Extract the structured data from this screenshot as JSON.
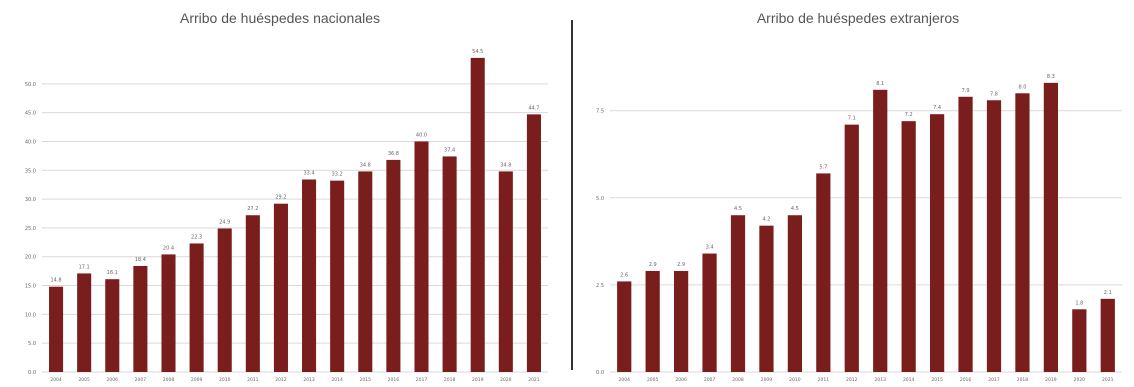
{
  "colors": {
    "bar": "#7a1d1d",
    "grid": "#d9d9d9",
    "text": "#666666"
  },
  "chart_data": [
    {
      "type": "bar",
      "title": "Arribo de huéspedes nacionales",
      "categories": [
        "2004",
        "2005",
        "2006",
        "2007",
        "2008",
        "2009",
        "2010",
        "2011",
        "2012",
        "2013",
        "2014",
        "2015",
        "2016",
        "2017",
        "2018",
        "2019",
        "2020",
        "2021"
      ],
      "values": [
        14.8,
        17.1,
        16.1,
        18.4,
        20.4,
        22.3,
        24.9,
        27.2,
        29.2,
        33.4,
        33.2,
        34.8,
        36.8,
        40.0,
        37.4,
        54.5,
        34.8,
        44.7
      ],
      "value_labels": [
        "14.8",
        "17.1",
        "16.1",
        "18.4",
        "20.4",
        "22.3",
        "24.9",
        "27.2",
        "29.2",
        "33.4",
        "33.2",
        "34.8",
        "36.8",
        "40.0",
        "37.4",
        "54.5",
        "34.8",
        "44.7"
      ],
      "yticks": [
        0,
        5,
        10,
        15,
        20,
        25,
        30,
        35,
        40,
        45,
        50
      ],
      "ytick_labels": [
        "0.0",
        "5.0",
        "10.0",
        "15.0",
        "20.0",
        "25.0",
        "30.0",
        "35.0",
        "40.0",
        "45.0",
        "50.0"
      ],
      "ylim": [
        0,
        55
      ],
      "xlabel": "",
      "ylabel": "",
      "grid": true
    },
    {
      "type": "bar",
      "title": "Arribo de huéspedes extranjeros",
      "categories": [
        "2004",
        "2005",
        "2006",
        "2007",
        "2008",
        "2009",
        "2010",
        "2011",
        "2012",
        "2013",
        "2014",
        "2015",
        "2016",
        "2017",
        "2018",
        "2019",
        "2020",
        "2021"
      ],
      "values": [
        2.6,
        2.9,
        2.9,
        3.4,
        4.5,
        4.2,
        4.5,
        5.7,
        7.1,
        8.1,
        7.2,
        7.4,
        7.9,
        7.8,
        8.0,
        8.3,
        1.8,
        2.1
      ],
      "value_labels": [
        "2.6",
        "2.9",
        "2.9",
        "3.4",
        "4.5",
        "4.2",
        "4.5",
        "5.7",
        "7.1",
        "8.1",
        "7.2",
        "7.4",
        "7.9",
        "7.8",
        "8.0",
        "8.3",
        "1.8",
        "2.1"
      ],
      "yticks": [
        0,
        2.5,
        5,
        7.5
      ],
      "ytick_labels": [
        "0.0",
        "2.5",
        "5.0",
        "7.5"
      ],
      "ylim": [
        0,
        9.3
      ],
      "xlabel": "",
      "ylabel": "",
      "grid": true
    }
  ]
}
